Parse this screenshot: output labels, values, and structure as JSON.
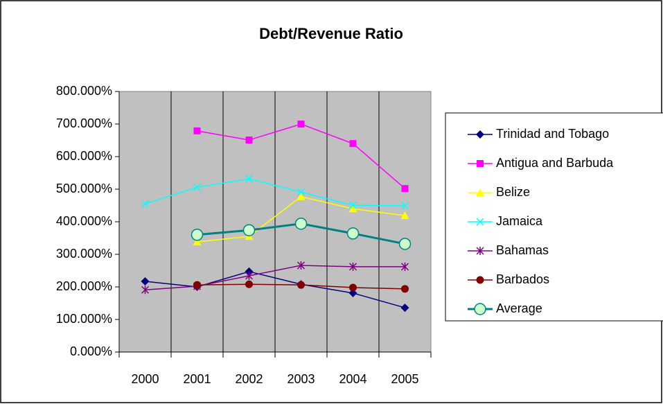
{
  "chart_data": {
    "type": "line",
    "title": "Debt/Revenue Ratio",
    "categories": [
      "2000",
      "2001",
      "2002",
      "2003",
      "2004",
      "2005"
    ],
    "ylim": [
      0,
      800
    ],
    "yticks": [
      {
        "value": 0,
        "label": "0.000%"
      },
      {
        "value": 100,
        "label": "100.000%"
      },
      {
        "value": 200,
        "label": "200.000%"
      },
      {
        "value": 300,
        "label": "300.000%"
      },
      {
        "value": 400,
        "label": "400.000%"
      },
      {
        "value": 500,
        "label": "500.000%"
      },
      {
        "value": 600,
        "label": "600.000%"
      },
      {
        "value": 700,
        "label": "700.000%"
      },
      {
        "value": 800,
        "label": "800.000%"
      }
    ],
    "grid": "vertical",
    "legend": "right",
    "plot_background": "#c0c0c0",
    "series": [
      {
        "name": "Trinidad and Tobago",
        "color": "#000080",
        "marker": "diamond",
        "values": [
          217,
          200,
          247,
          208,
          181,
          136
        ]
      },
      {
        "name": "Antigua and Barbuda",
        "color": "#ff00ff",
        "marker": "square",
        "values": [
          null,
          679,
          651,
          700,
          640,
          502
        ]
      },
      {
        "name": "Belize",
        "color": "#ffff00",
        "marker": "triangle",
        "values": [
          null,
          338,
          355,
          477,
          440,
          419
        ]
      },
      {
        "name": "Jamaica",
        "color": "#00ffff",
        "marker": "x",
        "values": [
          455,
          506,
          532,
          491,
          451,
          449
        ]
      },
      {
        "name": "Bahamas",
        "color": "#800080",
        "marker": "star",
        "values": [
          191,
          202,
          234,
          266,
          262,
          262
        ]
      },
      {
        "name": "Barbados",
        "color": "#800000",
        "marker": "circle",
        "values": [
          null,
          206,
          208,
          206,
          198,
          194
        ]
      },
      {
        "name": "Average",
        "color": "#008080",
        "marker": "bigcircle",
        "marker_fill": "#ccffcc",
        "width": 3,
        "values": [
          null,
          360,
          374,
          394,
          364,
          332
        ]
      }
    ]
  }
}
